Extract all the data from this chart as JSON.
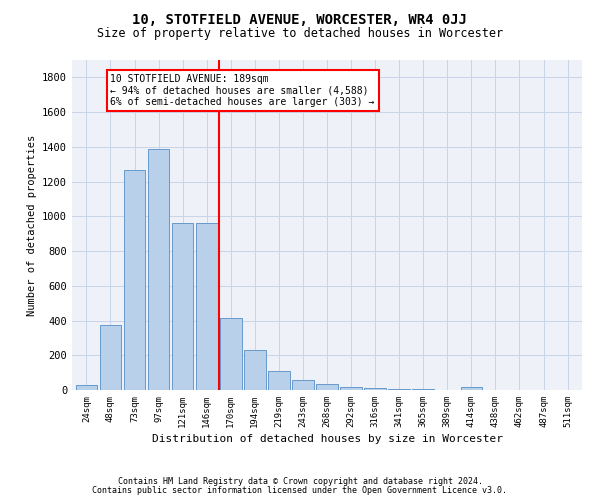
{
  "title": "10, STOTFIELD AVENUE, WORCESTER, WR4 0JJ",
  "subtitle": "Size of property relative to detached houses in Worcester",
  "xlabel": "Distribution of detached houses by size in Worcester",
  "ylabel": "Number of detached properties",
  "footnote1": "Contains HM Land Registry data © Crown copyright and database right 2024.",
  "footnote2": "Contains public sector information licensed under the Open Government Licence v3.0.",
  "property_line_x": 5.5,
  "annotation_text": "10 STOTFIELD AVENUE: 189sqm\n← 94% of detached houses are smaller (4,588)\n6% of semi-detached houses are larger (303) →",
  "bar_color": "#b8d0ea",
  "bar_edge_color": "#6699cc",
  "vline_color": "red",
  "annotation_box_edge": "red",
  "grid_color": "#c8d4e8",
  "bg_color": "#eef2f8",
  "categories": [
    "24sqm",
    "48sqm",
    "73sqm",
    "97sqm",
    "121sqm",
    "146sqm",
    "170sqm",
    "194sqm",
    "219sqm",
    "243sqm",
    "268sqm",
    "292sqm",
    "316sqm",
    "341sqm",
    "365sqm",
    "389sqm",
    "414sqm",
    "438sqm",
    "462sqm",
    "487sqm",
    "511sqm"
  ],
  "values": [
    30,
    375,
    1265,
    1390,
    960,
    960,
    415,
    230,
    110,
    60,
    35,
    20,
    10,
    5,
    3,
    2,
    15,
    2,
    2,
    2,
    2
  ],
  "ylim": [
    0,
    1900
  ],
  "yticks": [
    0,
    200,
    400,
    600,
    800,
    1000,
    1200,
    1400,
    1600,
    1800
  ]
}
